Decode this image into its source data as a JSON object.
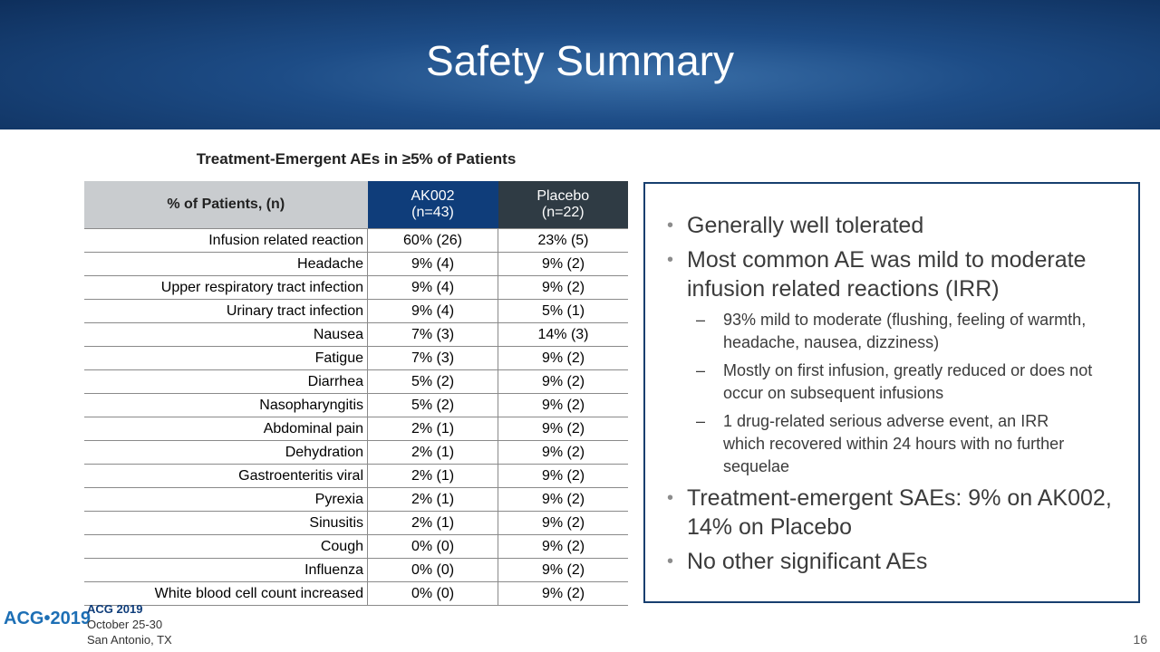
{
  "header": {
    "title": "Safety Summary"
  },
  "table": {
    "caption": "Treatment-Emergent AEs in ≥5% of Patients",
    "columns": [
      "% of Patients, (n)",
      "AK002\n(n=43)",
      "Placebo\n(n=22)"
    ],
    "rows": [
      [
        "Infusion related reaction",
        "60% (26)",
        "23% (5)"
      ],
      [
        "Headache",
        "9% (4)",
        "9% (2)"
      ],
      [
        "Upper respiratory tract infection",
        "9% (4)",
        "9% (2)"
      ],
      [
        "Urinary tract infection",
        "9% (4)",
        "5% (1)"
      ],
      [
        "Nausea",
        "7% (3)",
        "14% (3)"
      ],
      [
        "Fatigue",
        "7% (3)",
        "9% (2)"
      ],
      [
        "Diarrhea",
        "5% (2)",
        "9% (2)"
      ],
      [
        "Nasopharyngitis",
        "5% (2)",
        "9% (2)"
      ],
      [
        "Abdominal pain",
        "2% (1)",
        "9% (2)"
      ],
      [
        "Dehydration",
        "2% (1)",
        "9% (2)"
      ],
      [
        "Gastroenteritis viral",
        "2% (1)",
        "9% (2)"
      ],
      [
        "Pyrexia",
        "2% (1)",
        "9% (2)"
      ],
      [
        "Sinusitis",
        "2% (1)",
        "9% (2)"
      ],
      [
        "Cough",
        "0% (0)",
        "9% (2)"
      ],
      [
        "Influenza",
        "0% (0)",
        "9% (2)"
      ],
      [
        "White blood cell count increased",
        "0% (0)",
        "9% (2)"
      ]
    ]
  },
  "bullets": [
    {
      "text": "Generally well tolerated",
      "level": 1
    },
    {
      "text": "Most common AE was mild to moderate infusion related reactions (IRR)",
      "level": 1
    },
    {
      "text": "93% mild to moderate (flushing, feeling of warmth, headache, nausea, dizziness)",
      "level": 2
    },
    {
      "text": "Mostly on first infusion, greatly reduced or does not occur on subsequent infusions",
      "level": 2
    },
    {
      "text": "1 drug-related serious adverse event, an IRR which recovered within 24 hours with no further sequelae",
      "level": 2
    },
    {
      "text": "Treatment-emergent SAEs: 9% on AK002, 14% on Placebo",
      "level": 1
    },
    {
      "text": "No other significant AEs",
      "level": 1
    }
  ],
  "footer": {
    "logo": "ACG•2019",
    "event": "ACG 2019",
    "dates": "October 25-30",
    "place": "San Antonio, TX",
    "page": "16"
  }
}
